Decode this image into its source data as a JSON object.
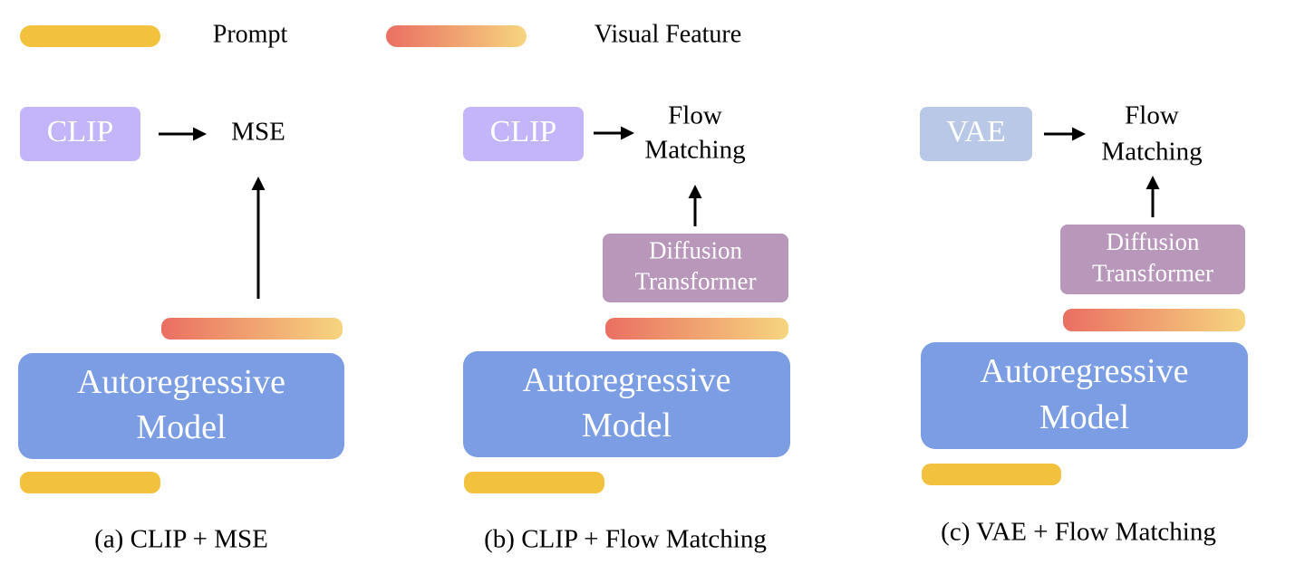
{
  "legend": [
    {
      "label": "Prompt"
    },
    {
      "label": "Visual Feature"
    }
  ],
  "panels": [
    {
      "encoder": "CLIP",
      "loss": [
        "MSE"
      ],
      "model": [
        "Autoregressive",
        "Model"
      ],
      "caption": "(a) CLIP +  MSE"
    },
    {
      "encoder": "CLIP",
      "loss": [
        "Flow",
        "Matching"
      ],
      "decoder": [
        "Diffusion",
        "Transformer"
      ],
      "model": [
        "Autoregressive",
        "Model"
      ],
      "caption": "(b) CLIP +  Flow Matching"
    },
    {
      "encoder": "VAE",
      "loss": [
        "Flow",
        "Matching"
      ],
      "decoder": [
        "Diffusion",
        "Transformer"
      ],
      "model": [
        "Autoregressive",
        "Model"
      ],
      "caption": "(c) VAE +  Flow Matching"
    }
  ]
}
